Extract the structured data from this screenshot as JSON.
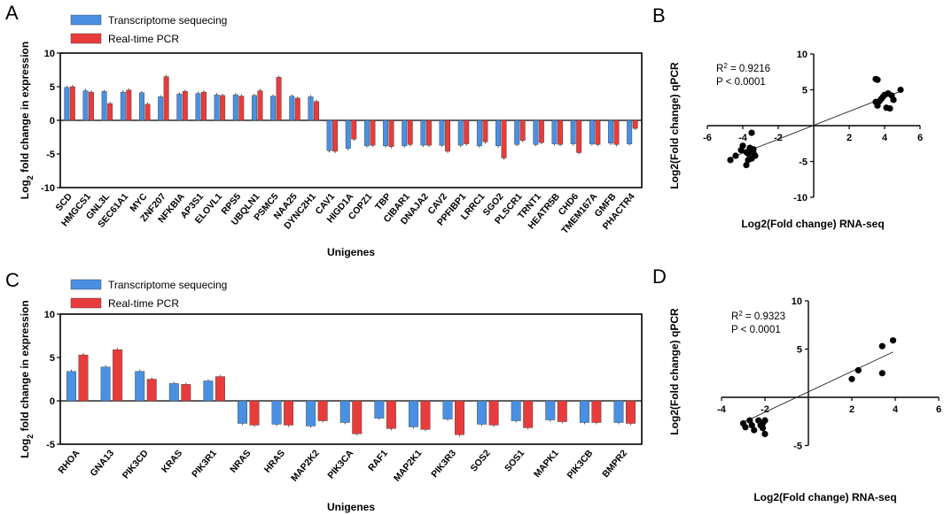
{
  "colors": {
    "rnaseq": "#4a90e2",
    "qpcr": "#e83c3c",
    "axis": "#000000",
    "point": "#000000"
  },
  "chart_data": [
    {
      "panel": "A",
      "type": "bar",
      "legend": {
        "position": "top-left",
        "entries": [
          "Transcriptome sequecing",
          "Real-time PCR"
        ]
      },
      "xlabel": "Unigenes",
      "ylabel": {
        "prefix": "Log",
        "sub": "2",
        "suffix": " fold change in expression"
      },
      "ylim": [
        -10,
        10
      ],
      "yticks": [
        10,
        5,
        0,
        -5,
        -10
      ],
      "categories": [
        "SCD",
        "HMGCS1",
        "GNL3L",
        "SEC61A1",
        "MYC",
        "ZNF207",
        "NFKBIA",
        "AP3S1",
        "ELOVL1",
        "RPS5",
        "UBQLN1",
        "PSMC5",
        "NAA25",
        "DYNC2H1",
        "CAV1",
        "HIGD1A",
        "COPZ1",
        "TBP",
        "CIBAR1",
        "DNAJA2",
        "CAV2",
        "PPFIBP1",
        "LRRC1",
        "SGO2",
        "PLSCR1",
        "TRNT1",
        "HEATR5B",
        "CHD6",
        "TMEM167A",
        "GMFB",
        "PHACTR4"
      ],
      "series": [
        {
          "name": "Transcriptome sequecing",
          "values": [
            4.9,
            4.4,
            4.3,
            4.2,
            4.1,
            3.5,
            3.9,
            4.0,
            3.8,
            3.8,
            3.7,
            3.6,
            3.6,
            3.5,
            -4.5,
            -4.2,
            -3.8,
            -3.8,
            -3.8,
            -3.7,
            -3.7,
            -3.7,
            -3.8,
            -3.8,
            -3.6,
            -3.6,
            -3.5,
            -3.5,
            -3.5,
            -3.4,
            -3.5
          ]
        },
        {
          "name": "Real-time PCR",
          "values": [
            5.0,
            4.2,
            2.5,
            4.5,
            2.4,
            6.5,
            4.3,
            4.2,
            3.7,
            3.6,
            4.4,
            6.4,
            3.3,
            2.8,
            -4.6,
            -2.8,
            -3.7,
            -3.9,
            -3.6,
            -3.7,
            -4.6,
            -3.5,
            -3.2,
            -5.6,
            -3.0,
            -3.3,
            -3.6,
            -4.8,
            -3.6,
            -3.6,
            -1.2
          ]
        }
      ]
    },
    {
      "panel": "B",
      "type": "scatter",
      "xlabel": "Log2(Fold change) RNA-seq",
      "ylabel": "Log2(Fold change) qPCR",
      "xlim": [
        -6,
        6
      ],
      "ylim": [
        -10,
        10
      ],
      "xticks": [
        -6,
        -4,
        -2,
        2,
        4,
        6
      ],
      "yticks": [
        10,
        5,
        -5,
        -10
      ],
      "annotation": {
        "r2_prefix": "R",
        "r2_sup": "2",
        "r2_value": " = 0.9216",
        "p": "P < 0.0001"
      },
      "fit_line": {
        "x": [
          -4.8,
          4.8
        ],
        "y": [
          -4.6,
          4.7
        ]
      },
      "points": [
        {
          "x": -4.7,
          "y": -4.8
        },
        {
          "x": -4.4,
          "y": -4.2
        },
        {
          "x": -4.1,
          "y": -3.4
        },
        {
          "x": -3.8,
          "y": -3.7
        },
        {
          "x": -3.7,
          "y": -3.9
        },
        {
          "x": -3.6,
          "y": -3.6
        },
        {
          "x": -3.5,
          "y": -4.6
        },
        {
          "x": -3.8,
          "y": -5.5
        },
        {
          "x": -3.7,
          "y": -4.8
        },
        {
          "x": -3.4,
          "y": -3.3
        },
        {
          "x": -3.3,
          "y": -4.2
        },
        {
          "x": -3.6,
          "y": -3.1
        },
        {
          "x": -4.0,
          "y": -2.8
        },
        {
          "x": -3.5,
          "y": -1.0
        },
        {
          "x": -3.4,
          "y": -3.8
        },
        {
          "x": 3.5,
          "y": 6.5
        },
        {
          "x": 3.6,
          "y": 6.4
        },
        {
          "x": 4.9,
          "y": 5.0
        },
        {
          "x": 4.2,
          "y": 4.5
        },
        {
          "x": 4.0,
          "y": 4.3
        },
        {
          "x": 3.9,
          "y": 4.0
        },
        {
          "x": 3.7,
          "y": 3.4
        },
        {
          "x": 4.4,
          "y": 4.2
        },
        {
          "x": 3.6,
          "y": 2.8
        },
        {
          "x": 4.1,
          "y": 2.5
        },
        {
          "x": 4.3,
          "y": 2.4
        },
        {
          "x": 3.8,
          "y": 3.7
        },
        {
          "x": 3.5,
          "y": 3.3
        },
        {
          "x": 4.5,
          "y": 3.6
        }
      ]
    },
    {
      "panel": "C",
      "type": "bar",
      "legend": {
        "position": "top-left",
        "entries": [
          "Transcriptome sequecing",
          "Real-time PCR"
        ]
      },
      "xlabel": "Unigenes",
      "ylabel": {
        "prefix": "Log",
        "sub": "2",
        "suffix": " fold change in expression"
      },
      "ylim": [
        -5,
        10
      ],
      "yticks": [
        10,
        5,
        0,
        -5
      ],
      "categories": [
        "RHOA",
        "GNA13",
        "PIK3CD",
        "KRAS",
        "PIK3R1",
        "NRAS",
        "HRAS",
        "MAP2K2",
        "PIK3CA",
        "RAF1",
        "MAP2K1",
        "PIK3R3",
        "SOS2",
        "SOS1",
        "MAPK1",
        "PIK3CB",
        "BMPR2"
      ],
      "series": [
        {
          "name": "Transcriptome sequecing",
          "values": [
            3.4,
            3.9,
            3.4,
            2.0,
            2.3,
            -2.6,
            -2.7,
            -2.9,
            -2.5,
            -2.0,
            -3.0,
            -2.1,
            -2.7,
            -2.3,
            -2.2,
            -2.5,
            -2.5
          ]
        },
        {
          "name": "Real-time PCR",
          "values": [
            5.3,
            5.9,
            2.5,
            1.9,
            2.8,
            -2.8,
            -2.8,
            -2.3,
            -3.8,
            -3.2,
            -3.3,
            -3.9,
            -2.8,
            -3.1,
            -2.4,
            -2.5,
            -2.6
          ]
        }
      ]
    },
    {
      "panel": "D",
      "type": "scatter",
      "xlabel": "Log2(Fold change) RNA-seq",
      "ylabel": "Log2(Fold change) qPCR",
      "xlim": [
        -4,
        6
      ],
      "ylim": [
        -5,
        10
      ],
      "xticks": [
        -4,
        -2,
        2,
        4,
        6
      ],
      "yticks": [
        10,
        5,
        -5
      ],
      "annotation": {
        "r2_prefix": "R",
        "r2_sup": "2",
        "r2_value": " = 0.9323",
        "p": "P < 0.0001"
      },
      "fit_line": {
        "x": [
          -3.0,
          3.9
        ],
        "y": [
          -2.6,
          4.7
        ]
      },
      "points": [
        {
          "x": -3.0,
          "y": -2.7
        },
        {
          "x": -2.9,
          "y": -3.1
        },
        {
          "x": -2.7,
          "y": -2.4
        },
        {
          "x": -2.6,
          "y": -2.9
        },
        {
          "x": -2.5,
          "y": -3.4
        },
        {
          "x": -2.3,
          "y": -2.4
        },
        {
          "x": -2.2,
          "y": -2.9
        },
        {
          "x": -2.1,
          "y": -3.2
        },
        {
          "x": -2.0,
          "y": -2.4
        },
        {
          "x": -2.0,
          "y": -3.8
        },
        {
          "x": -2.1,
          "y": -2.7
        },
        {
          "x": 2.0,
          "y": 1.9
        },
        {
          "x": 2.3,
          "y": 2.8
        },
        {
          "x": 3.4,
          "y": 5.3
        },
        {
          "x": 3.9,
          "y": 5.9
        },
        {
          "x": 3.4,
          "y": 2.5
        }
      ]
    }
  ]
}
